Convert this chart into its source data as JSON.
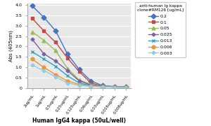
{
  "x_labels": [
    "2ug/mL",
    "1ug/mL",
    "0.5ug/mL",
    "0.25ug/mL",
    "0.125ug/mL",
    "0.06ug/mL",
    "0.03ug/mL",
    "0.016ug/mL",
    "0.008ug/mL"
  ],
  "series": [
    {
      "label": "0.2",
      "color": "#4472C4",
      "marker": "D",
      "markersize": 3.5,
      "values": [
        3.95,
        3.4,
        2.75,
        1.65,
        0.9,
        0.35,
        0.12,
        0.08,
        0.06
      ]
    },
    {
      "label": "0.1",
      "color": "#BE4B48",
      "marker": "s",
      "markersize": 3.5,
      "values": [
        3.35,
        2.75,
        2.2,
        1.45,
        0.8,
        0.25,
        0.1,
        0.07,
        0.05
      ]
    },
    {
      "label": "0.05",
      "color": "#9BBB59",
      "marker": "^",
      "markersize": 3.5,
      "values": [
        2.7,
        2.3,
        1.8,
        0.95,
        0.4,
        0.18,
        0.1,
        0.07,
        0.05
      ]
    },
    {
      "label": "0.025",
      "color": "#7B5EA7",
      "marker": "D",
      "markersize": 2.5,
      "values": [
        2.35,
        1.65,
        1.3,
        0.85,
        0.35,
        0.15,
        0.08,
        0.06,
        0.05
      ]
    },
    {
      "label": "0.013",
      "color": "#23A5C5",
      "marker": "x",
      "markersize": 3.5,
      "values": [
        1.75,
        1.4,
        1.05,
        0.6,
        0.25,
        0.12,
        0.07,
        0.05,
        0.04
      ]
    },
    {
      "label": "0.006",
      "color": "#E8973A",
      "marker": "o",
      "markersize": 3.5,
      "values": [
        1.4,
        1.0,
        0.65,
        0.35,
        0.18,
        0.1,
        0.07,
        0.05,
        0.04
      ]
    },
    {
      "label": "0.003",
      "color": "#92CDDC",
      "marker": "D",
      "markersize": 2.5,
      "values": [
        1.1,
        0.85,
        0.55,
        0.25,
        0.14,
        0.09,
        0.07,
        0.05,
        0.04
      ]
    }
  ],
  "ylabel": "Abs (405nm)",
  "xlabel": "Human IgG4 kappa (50uL/well)",
  "legend_title": "anti-human Ig kappa\nclone#RM126 [ug/mL]",
  "ylim": [
    0,
    4.05
  ],
  "yticks": [
    0,
    0.5,
    1.0,
    1.5,
    2.0,
    2.5,
    3.0,
    3.5,
    4.0
  ],
  "background_color": "#FFFFFF",
  "plot_bg_color": "#E8E8E8"
}
